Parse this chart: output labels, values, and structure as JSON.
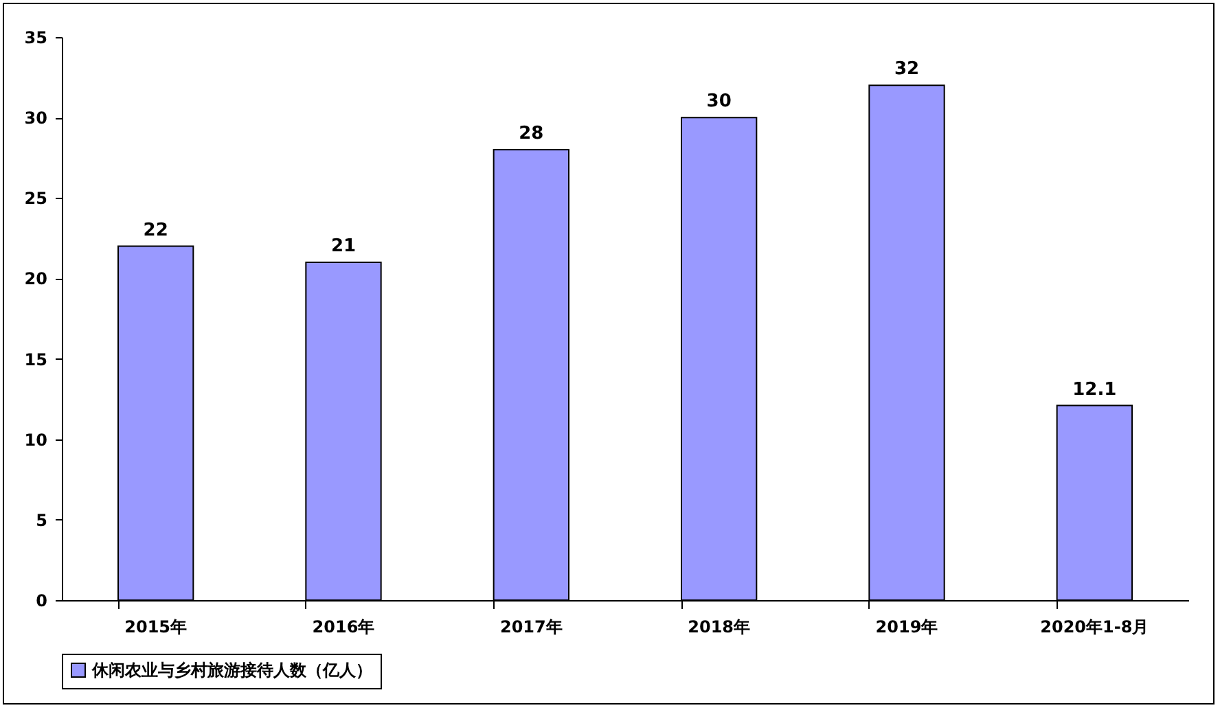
{
  "chart_data": {
    "type": "bar",
    "categories": [
      "2015年",
      "2016年",
      "2017年",
      "2018年",
      "2019年",
      "2020年1-8月"
    ],
    "series": [
      {
        "name": "休闲农业与乡村旅游接待人数（亿人）",
        "color": "#9999ff",
        "values": [
          22,
          21,
          28,
          30,
          32,
          12.1
        ]
      }
    ],
    "ylim": [
      0,
      35
    ],
    "yticks": [
      0,
      5,
      10,
      15,
      20,
      25,
      30,
      35
    ],
    "grid": false,
    "legend": "bottom",
    "data_labels": true
  }
}
